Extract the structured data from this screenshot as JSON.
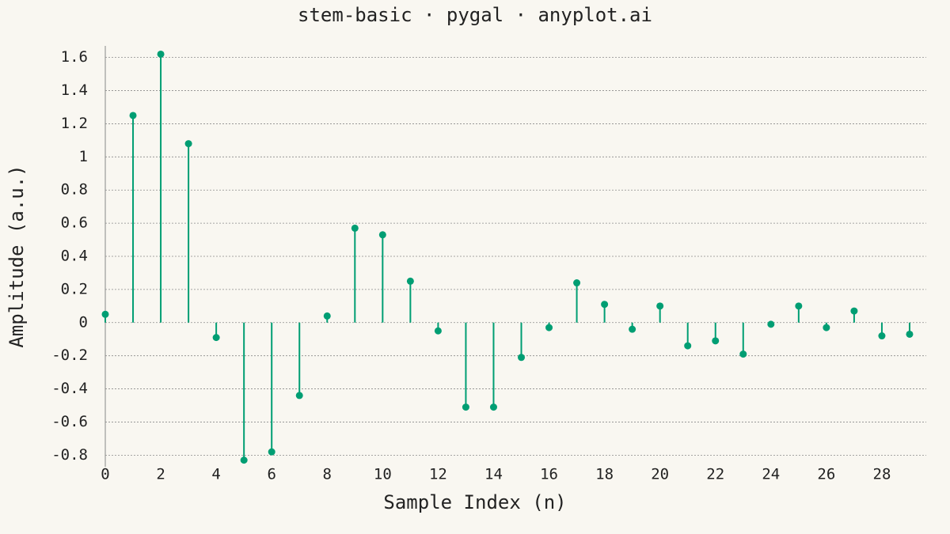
{
  "chart_data": {
    "type": "stem",
    "title": "stem-basic · pygal · anyplot.ai",
    "x_label": "Sample Index (n)",
    "y_label": "Amplitude (a.u.)",
    "x": [
      0,
      1,
      2,
      3,
      4,
      5,
      6,
      7,
      8,
      9,
      10,
      11,
      12,
      13,
      14,
      15,
      16,
      17,
      18,
      19,
      20,
      21,
      22,
      23,
      24,
      25,
      26,
      27,
      28,
      29
    ],
    "values": [
      0.05,
      1.25,
      1.62,
      1.08,
      -0.09,
      -0.83,
      -0.78,
      -0.44,
      0.04,
      0.57,
      0.53,
      0.25,
      -0.05,
      -0.51,
      -0.51,
      -0.21,
      -0.03,
      0.24,
      0.11,
      -0.04,
      0.1,
      -0.14,
      -0.11,
      -0.19,
      -0.01,
      0.1,
      -0.03,
      0.07,
      -0.08,
      -0.07
    ],
    "color": "#009e73",
    "xlim": [
      0,
      29.6
    ],
    "ylim": [
      -0.87,
      1.67
    ],
    "xticks": [
      0,
      2,
      4,
      6,
      8,
      10,
      12,
      14,
      16,
      18,
      20,
      22,
      24,
      26,
      28
    ],
    "yticks": [
      -0.8,
      -0.6,
      -0.4,
      -0.2,
      0,
      0.2,
      0.4,
      0.6,
      0.8,
      1,
      1.2,
      1.4,
      1.6
    ],
    "grid": true
  }
}
